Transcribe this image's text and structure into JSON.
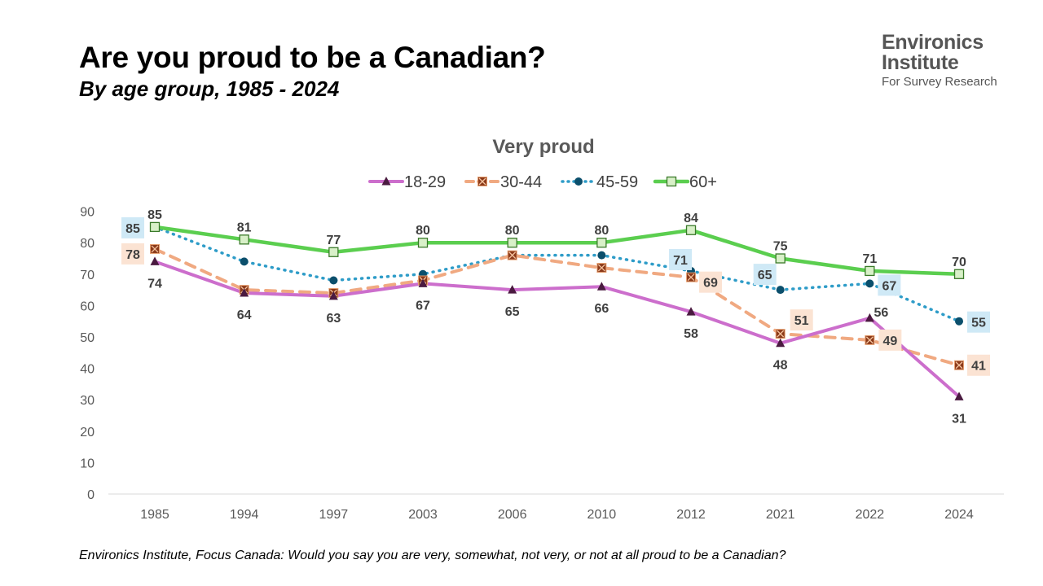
{
  "title": "Are you proud to be a Canadian?",
  "subtitle": "By age group, 1985 - 2024",
  "logo": {
    "line1": "Environics",
    "line2": "Institute",
    "line3": "For Survey Research"
  },
  "footnote": "Environics Institute, Focus Canada: Would you say you are very, somewhat, not very, or not at all proud to be a Canadian?",
  "colors": {
    "s18_29": "#CC6ECC",
    "s30_44": "#F0A981",
    "s45_59": "#2E9CC8",
    "s60": "#5BCE4F",
    "marker18": "#4A1A40",
    "marker30": "#8B3A1A",
    "marker45": "#0B4F6C",
    "marker60bg": "#D8F0C8"
  },
  "chart_data": {
    "type": "line",
    "title": "Very proud",
    "categories": [
      "1985",
      "1994",
      "1997",
      "2003",
      "2006",
      "2010",
      "2012",
      "2021",
      "2022",
      "2024"
    ],
    "ylim": [
      0,
      90
    ],
    "yticks": [
      "0",
      "10",
      "20",
      "30",
      "40",
      "50",
      "60",
      "70",
      "80",
      "90"
    ],
    "legend_position": "top",
    "series": [
      {
        "name": "18-29",
        "values": [
          74,
          64,
          63,
          67,
          65,
          66,
          58,
          48,
          56,
          31
        ]
      },
      {
        "name": "30-44",
        "values": [
          78,
          65,
          64,
          68,
          76,
          72,
          69,
          51,
          49,
          41
        ]
      },
      {
        "name": "45-59",
        "values": [
          85,
          74,
          68,
          70,
          76,
          76,
          71,
          65,
          67,
          55
        ]
      },
      {
        "name": "60+",
        "values": [
          85,
          81,
          77,
          80,
          80,
          80,
          84,
          75,
          71,
          70
        ]
      }
    ],
    "data_labels": [
      {
        "series": "18-29",
        "index": 0,
        "text": "74"
      },
      {
        "series": "18-29",
        "index": 1,
        "text": "64"
      },
      {
        "series": "18-29",
        "index": 2,
        "text": "63"
      },
      {
        "series": "18-29",
        "index": 3,
        "text": "67"
      },
      {
        "series": "18-29",
        "index": 4,
        "text": "65"
      },
      {
        "series": "18-29",
        "index": 5,
        "text": "66"
      },
      {
        "series": "18-29",
        "index": 6,
        "text": "58"
      },
      {
        "series": "18-29",
        "index": 7,
        "text": "48"
      },
      {
        "series": "18-29",
        "index": 8,
        "text": "56"
      },
      {
        "series": "18-29",
        "index": 9,
        "text": "31"
      },
      {
        "series": "30-44",
        "index": 0,
        "text": "78"
      },
      {
        "series": "30-44",
        "index": 6,
        "text": "69"
      },
      {
        "series": "30-44",
        "index": 7,
        "text": "51"
      },
      {
        "series": "30-44",
        "index": 8,
        "text": "49"
      },
      {
        "series": "30-44",
        "index": 9,
        "text": "41"
      },
      {
        "series": "45-59",
        "index": 0,
        "text": "85"
      },
      {
        "series": "45-59",
        "index": 6,
        "text": "71"
      },
      {
        "series": "45-59",
        "index": 7,
        "text": "65"
      },
      {
        "series": "45-59",
        "index": 8,
        "text": "67"
      },
      {
        "series": "45-59",
        "index": 9,
        "text": "55"
      },
      {
        "series": "60+",
        "index": 0,
        "text": "85"
      },
      {
        "series": "60+",
        "index": 1,
        "text": "81"
      },
      {
        "series": "60+",
        "index": 2,
        "text": "77"
      },
      {
        "series": "60+",
        "index": 3,
        "text": "80"
      },
      {
        "series": "60+",
        "index": 4,
        "text": "80"
      },
      {
        "series": "60+",
        "index": 5,
        "text": "80"
      },
      {
        "series": "60+",
        "index": 6,
        "text": "84"
      },
      {
        "series": "60+",
        "index": 7,
        "text": "75"
      },
      {
        "series": "60+",
        "index": 8,
        "text": "71"
      },
      {
        "series": "60+",
        "index": 9,
        "text": "70"
      }
    ]
  }
}
